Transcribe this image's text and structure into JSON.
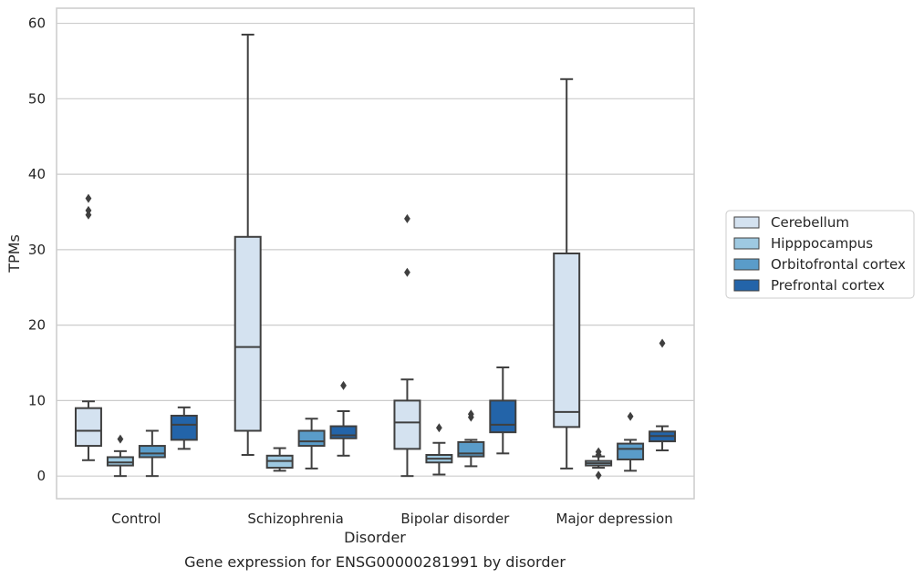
{
  "chart_data": {
    "type": "box",
    "caption": "Gene expression for ENSG00000281991 by disorder",
    "xlabel": "Disorder",
    "ylabel": "TPMs",
    "ylim": [
      -3,
      62
    ],
    "yticks": [
      0,
      10,
      20,
      30,
      40,
      50,
      60
    ],
    "grid": true,
    "legend_position": "right",
    "categories": [
      "Control",
      "Schizophrenia",
      "Bipolar disorder",
      "Major depression"
    ],
    "series": [
      {
        "name": "Cerebellum",
        "color": "#d4e2f0",
        "boxes": [
          {
            "whisker_low": 2.1,
            "q1": 4.0,
            "median": 6.0,
            "q3": 9.0,
            "whisker_high": 9.9,
            "outliers": [
              34.6,
              35.2,
              36.8
            ]
          },
          {
            "whisker_low": 2.8,
            "q1": 6.0,
            "median": 17.1,
            "q3": 31.7,
            "whisker_high": 58.5,
            "outliers": []
          },
          {
            "whisker_low": 0.0,
            "q1": 3.6,
            "median": 7.1,
            "q3": 10.0,
            "whisker_high": 12.8,
            "outliers": [
              27.0,
              34.1
            ]
          },
          {
            "whisker_low": 1.0,
            "q1": 6.5,
            "median": 8.5,
            "q3": 29.5,
            "whisker_high": 52.6,
            "outliers": []
          }
        ]
      },
      {
        "name": "Hipppocampus",
        "color": "#9ec9e1",
        "boxes": [
          {
            "whisker_low": 0.0,
            "q1": 1.4,
            "median": 1.8,
            "q3": 2.5,
            "whisker_high": 3.3,
            "outliers": [
              4.9
            ]
          },
          {
            "whisker_low": 0.7,
            "q1": 1.1,
            "median": 2.0,
            "q3": 2.7,
            "whisker_high": 3.7,
            "outliers": []
          },
          {
            "whisker_low": 0.2,
            "q1": 1.8,
            "median": 2.3,
            "q3": 2.8,
            "whisker_high": 4.4,
            "outliers": [
              6.4
            ]
          },
          {
            "whisker_low": 1.1,
            "q1": 1.4,
            "median": 1.7,
            "q3": 2.0,
            "whisker_high": 2.6,
            "outliers": [
              0.1,
              2.8,
              3.2
            ]
          }
        ]
      },
      {
        "name": "Orbitofrontal cortex",
        "color": "#5a9cc9",
        "boxes": [
          {
            "whisker_low": 0.0,
            "q1": 2.5,
            "median": 3.0,
            "q3": 4.0,
            "whisker_high": 6.0,
            "outliers": []
          },
          {
            "whisker_low": 1.0,
            "q1": 4.0,
            "median": 4.6,
            "q3": 6.0,
            "whisker_high": 7.6,
            "outliers": []
          },
          {
            "whisker_low": 1.3,
            "q1": 2.6,
            "median": 3.0,
            "q3": 4.5,
            "whisker_high": 4.8,
            "outliers": [
              7.8,
              8.2
            ]
          },
          {
            "whisker_low": 0.7,
            "q1": 2.2,
            "median": 3.6,
            "q3": 4.3,
            "whisker_high": 4.8,
            "outliers": [
              7.9
            ]
          }
        ]
      },
      {
        "name": "Prefrontal cortex",
        "color": "#2364a9",
        "boxes": [
          {
            "whisker_low": 3.6,
            "q1": 4.8,
            "median": 6.8,
            "q3": 8.0,
            "whisker_high": 9.1,
            "outliers": []
          },
          {
            "whisker_low": 2.7,
            "q1": 5.0,
            "median": 5.4,
            "q3": 6.6,
            "whisker_high": 8.6,
            "outliers": [
              12.0
            ]
          },
          {
            "whisker_low": 3.0,
            "q1": 5.8,
            "median": 6.8,
            "q3": 10.0,
            "whisker_high": 14.4,
            "outliers": []
          },
          {
            "whisker_low": 3.4,
            "q1": 4.6,
            "median": 5.3,
            "q3": 5.9,
            "whisker_high": 6.6,
            "outliers": [
              17.6
            ]
          }
        ]
      }
    ]
  }
}
